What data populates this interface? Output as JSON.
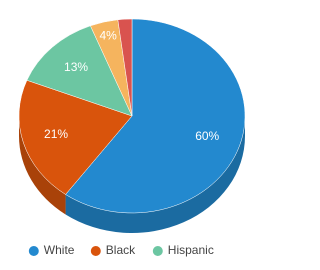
{
  "chart_data": {
    "type": "pie3d",
    "categories": [
      "White",
      "Black",
      "Hispanic",
      null,
      null
    ],
    "values": [
      60,
      21,
      13,
      4,
      2
    ],
    "value_labels": [
      "60%",
      "21%",
      "13%",
      "4%",
      null
    ],
    "colors": [
      "#2389cf",
      "#d9540c",
      "#6cc6a2",
      "#f5b45e",
      "#d9534f"
    ],
    "legend": "bottom"
  }
}
